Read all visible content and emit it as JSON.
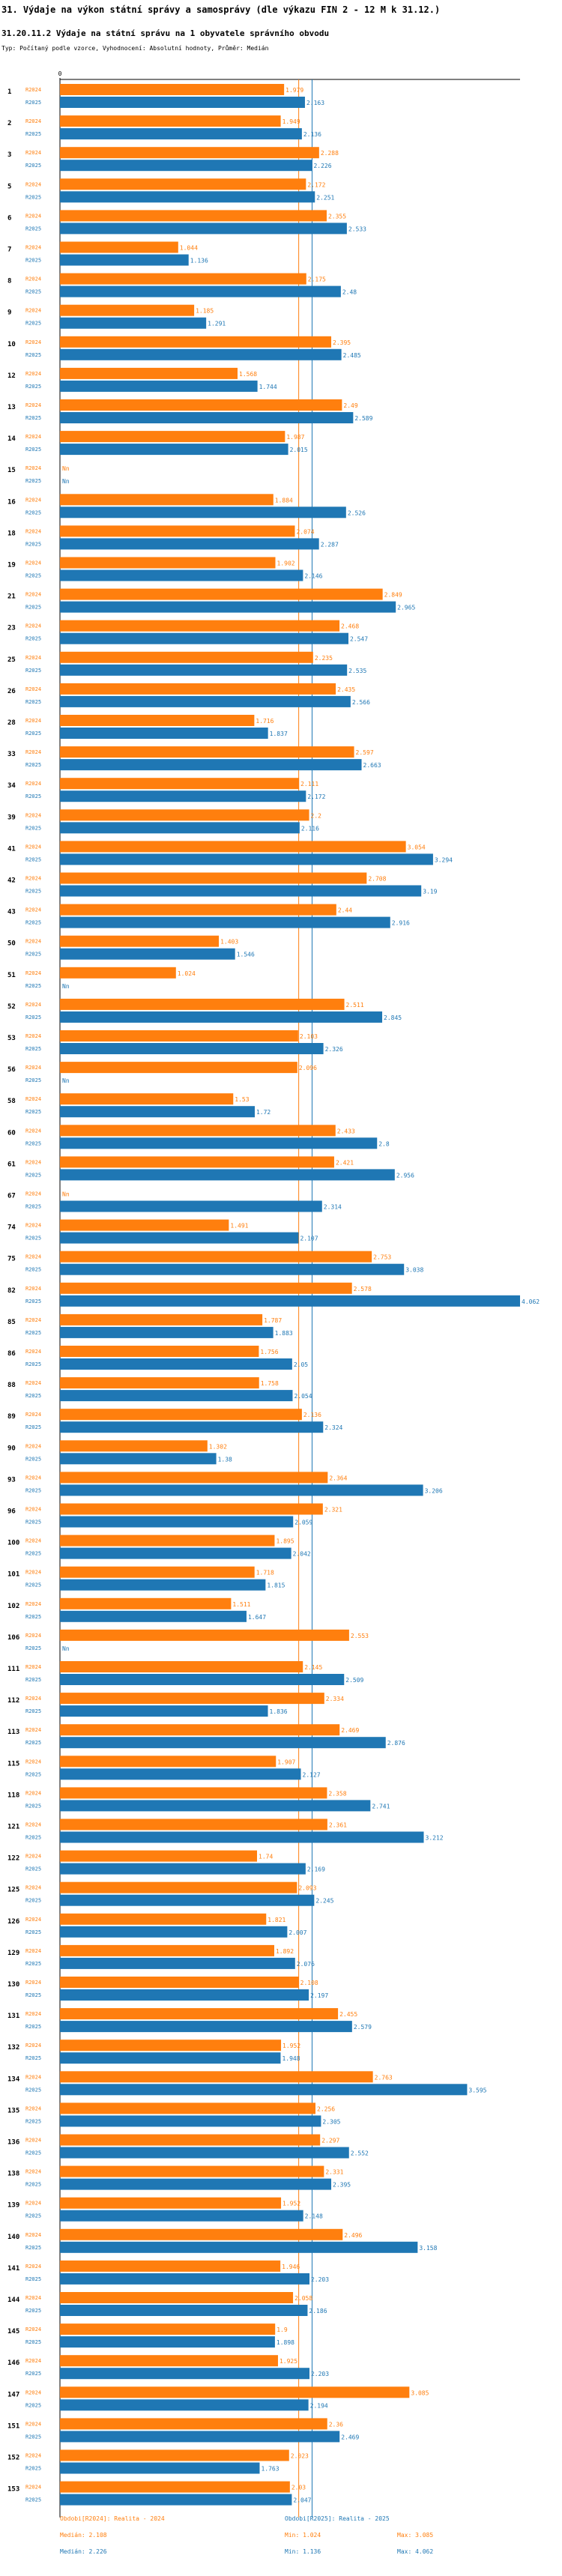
{
  "header": {
    "title": "31. Výdaje na výkon státní správy a samosprávy (dle výkazu FIN 2 - 12 M k 31.12.)",
    "subtitle": "31.20.11.2 Výdaje na státní správu na 1 obyvatele správního obvodu",
    "params": "Typ: Počítaný podle vzorce, Vyhodnocení: Absolutní hodnoty, Průměr: Medián"
  },
  "colors": {
    "series_2024": "#ff7f0e",
    "series_2025": "#1f77b4"
  },
  "chart_data": {
    "type": "bar",
    "orientation": "horizontal",
    "xlim": [
      0,
      4.062
    ],
    "zero_label": "0",
    "categories": [
      "1",
      "2",
      "3",
      "5",
      "6",
      "7",
      "8",
      "9",
      "10",
      "12",
      "13",
      "14",
      "15",
      "16",
      "18",
      "19",
      "21",
      "23",
      "25",
      "26",
      "28",
      "33",
      "34",
      "39",
      "41",
      "42",
      "43",
      "50",
      "51",
      "52",
      "53",
      "56",
      "58",
      "60",
      "61",
      "67",
      "74",
      "75",
      "82",
      "85",
      "86",
      "88",
      "89",
      "90",
      "93",
      "96",
      "100",
      "101",
      "102",
      "106",
      "111",
      "112",
      "113",
      "115",
      "118",
      "121",
      "122",
      "125",
      "126",
      "129",
      "130",
      "131",
      "132",
      "134",
      "135",
      "136",
      "138",
      "139",
      "140",
      "141",
      "144",
      "145",
      "146",
      "147",
      "151",
      "152",
      "153"
    ],
    "series": [
      {
        "name": "R2024",
        "values": [
          1.979,
          1.949,
          2.288,
          2.172,
          2.355,
          1.044,
          2.175,
          1.185,
          2.395,
          1.568,
          2.49,
          1.987,
          "Nn",
          1.884,
          2.074,
          1.902,
          2.849,
          2.468,
          2.235,
          2.435,
          1.716,
          2.597,
          2.111,
          2.2,
          3.054,
          2.708,
          2.44,
          1.403,
          1.024,
          2.511,
          2.103,
          2.096,
          1.53,
          2.433,
          2.421,
          "Nn",
          1.491,
          2.753,
          2.578,
          1.787,
          1.756,
          1.758,
          2.136,
          1.302,
          2.364,
          2.321,
          1.895,
          1.718,
          1.511,
          2.553,
          2.145,
          2.334,
          2.469,
          1.907,
          2.358,
          2.361,
          1.74,
          2.093,
          1.821,
          1.892,
          2.108,
          2.455,
          1.952,
          2.763,
          2.256,
          2.297,
          2.331,
          1.952,
          2.496,
          1.946,
          2.058,
          1.9,
          1.925,
          3.085,
          2.36,
          2.023,
          2.03
        ],
        "labels": [
          "1.979",
          "1.949",
          "2.288",
          "2.172",
          "2.355",
          "1.044",
          "2.175",
          "1.185",
          "2.395",
          "1.568",
          "2.49",
          "1.987",
          "Nn",
          "1.884",
          "2.074",
          "1.902",
          "2.849",
          "2.468",
          "2.235",
          "2.435",
          "1.716",
          "2.597",
          "2.111",
          "2.2",
          "3.054",
          "2.708",
          "2.44",
          "1.403",
          "1.024",
          "2.511",
          "2.103",
          "2.096",
          "1.53",
          "2.433",
          "2.421",
          "Nn",
          "1.491",
          "2.753",
          "2.578",
          "1.787",
          "1.756",
          "1.758",
          "2.136",
          "1.302",
          "2.364",
          "2.321",
          "1.895",
          "1.718",
          "1.511",
          "2.553",
          "2.145",
          "2.334",
          "2.469",
          "1.907",
          "2.358",
          "2.361",
          "1.74",
          "2.093",
          "1.821",
          "1.892",
          "2.108",
          "2.455",
          "1.952",
          "2.763",
          "2.256",
          "2.297",
          "2.331",
          "1.952",
          "2.496",
          "1.946",
          "2.058",
          "1.9",
          "1.925",
          "3.085",
          "2.36",
          "2.023",
          "2.03"
        ]
      },
      {
        "name": "R2025",
        "values": [
          2.163,
          2.136,
          2.226,
          2.251,
          2.533,
          1.136,
          2.48,
          1.291,
          2.485,
          1.744,
          2.589,
          2.015,
          "Nn",
          2.526,
          2.287,
          2.146,
          2.965,
          2.547,
          2.535,
          2.566,
          1.837,
          2.663,
          2.172,
          2.116,
          3.294,
          3.19,
          2.916,
          1.546,
          "Nn",
          2.845,
          2.326,
          "Nn",
          1.72,
          2.8,
          2.956,
          2.314,
          2.107,
          3.038,
          4.062,
          1.883,
          2.05,
          2.054,
          2.324,
          1.38,
          3.206,
          2.059,
          2.042,
          1.815,
          1.647,
          "Nn",
          2.509,
          1.836,
          2.876,
          2.127,
          2.741,
          3.212,
          2.169,
          2.245,
          2.007,
          2.076,
          2.197,
          2.579,
          1.948,
          3.595,
          2.305,
          2.552,
          2.395,
          2.148,
          3.158,
          2.203,
          2.186,
          1.898,
          2.203,
          2.194,
          2.469,
          1.763,
          2.047
        ],
        "labels": [
          "2.163",
          "2.136",
          "2.226",
          "2.251",
          "2.533",
          "1.136",
          "2.48",
          "1.291",
          "2.485",
          "1.744",
          "2.589",
          "2.015",
          "Nn",
          "2.526",
          "2.287",
          "2.146",
          "2.965",
          "2.547",
          "2.535",
          "2.566",
          "1.837",
          "2.663",
          "2.172",
          "2.116",
          "3.294",
          "3.19",
          "2.916",
          "1.546",
          "Nn",
          "2.845",
          "2.326",
          "Nn",
          "1.72",
          "2.8",
          "2.956",
          "2.314",
          "2.107",
          "3.038",
          "4.062",
          "1.883",
          "2.05",
          "2.054",
          "2.324",
          "1.38",
          "3.206",
          "2.059",
          "2.042",
          "1.815",
          "1.647",
          "Nn",
          "2.509",
          "1.836",
          "2.876",
          "2.127",
          "2.741",
          "3.212",
          "2.169",
          "2.245",
          "2.007",
          "2.076",
          "2.197",
          "2.579",
          "1.948",
          "3.595",
          "2.305",
          "2.552",
          "2.395",
          "2.148",
          "3.158",
          "2.203",
          "2.186",
          "1.898",
          "2.203",
          "2.194",
          "2.469",
          "1.763",
          "2.047"
        ]
      }
    ],
    "reference_lines": [
      {
        "series": "R2024",
        "name": "Medián",
        "value": 2.108
      },
      {
        "series": "R2025",
        "name": "Medián",
        "value": 2.226
      }
    ],
    "legend": [
      {
        "series": "R2024",
        "name": "Obdobi[R2024]: Realita - 2024",
        "median": "Medián: 2.108",
        "min": "Min: 1.024",
        "max": "Max: 3.085"
      },
      {
        "series": "R2025",
        "name": "Obdobi[R2025]: Realita - 2025",
        "median": "Medián: 2.226",
        "min": "Min: 1.136",
        "max": "Max: 4.062"
      }
    ]
  }
}
